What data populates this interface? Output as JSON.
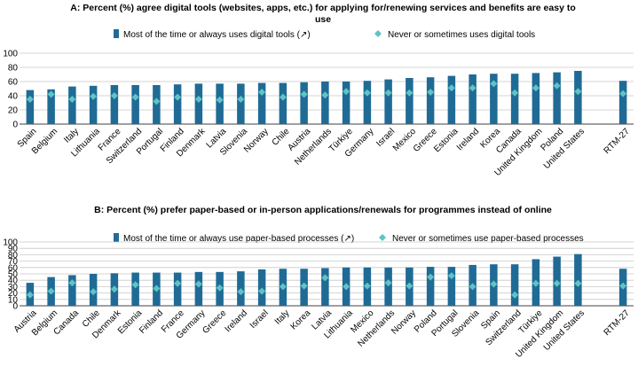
{
  "colors": {
    "bar": "#1f6b96",
    "diamond": "#5ec4c4",
    "grid": "#c8c8c8",
    "axis": "#000000"
  },
  "chart_data": [
    {
      "type": "bar",
      "title_line1": "A: Percent (%) agree digital tools (websites, apps, etc.) for applying for/renewing services and benefits are easy to",
      "title_line2": "use",
      "ylim": [
        0,
        100
      ],
      "yticks": [
        0,
        20,
        40,
        60,
        80,
        100
      ],
      "grid": true,
      "legend_position": "top",
      "categories": [
        "Spain",
        "Belgium",
        "Italy",
        "Lithuania",
        "France",
        "Switzerland",
        "Portugal",
        "Finland",
        "Denmark",
        "Latvia",
        "Slovenia",
        "Norway",
        "Chile",
        "Austria",
        "Netherlands",
        "Türkiye",
        "Germany",
        "Israel",
        "Mexico",
        "Greece",
        "Estonia",
        "Ireland",
        "Korea",
        "Canada",
        "United Kingdom",
        "Poland",
        "United States",
        "RTM-27"
      ],
      "series": [
        {
          "name": "Most of the time or always uses digital tools (↗)",
          "marker": "bar",
          "values": [
            48,
            49,
            53,
            54,
            55,
            55,
            55,
            56,
            57,
            57,
            57,
            58,
            58,
            59,
            60,
            60,
            61,
            63,
            65,
            66,
            68,
            70,
            71,
            71,
            72,
            73,
            75,
            61
          ]
        },
        {
          "name": "Never or sometimes uses digital tools",
          "marker": "diamond",
          "values": [
            35,
            42,
            35,
            39,
            40,
            38,
            32,
            38,
            35,
            34,
            35,
            45,
            38,
            42,
            41,
            46,
            44,
            44,
            44,
            45,
            51,
            51,
            57,
            44,
            51,
            54,
            46,
            43
          ]
        }
      ]
    },
    {
      "type": "bar",
      "title_line1": "B: Percent (%) prefer paper-based or in-person applications/renewals for programmes instead of online",
      "title_line2": "",
      "ylim": [
        0,
        100
      ],
      "yticks": [
        0,
        10,
        20,
        30,
        40,
        50,
        60,
        70,
        80,
        90,
        100
      ],
      "grid": true,
      "legend_position": "top",
      "categories": [
        "Austria",
        "Belgium",
        "Canada",
        "Chile",
        "Denmark",
        "Estonia",
        "Finland",
        "France",
        "Germany",
        "Greece",
        "Ireland",
        "Israel",
        "Italy",
        "Korea",
        "Latvia",
        "Lithuania",
        "Mexico",
        "Netherlands",
        "Norway",
        "Poland",
        "Portugal",
        "Slovenia",
        "Spain",
        "Switzerland",
        "Türkiye",
        "United Kingdom",
        "United States",
        "RTM-27"
      ],
      "series": [
        {
          "name": "Most of the time or always use paper-based processes (↗)",
          "marker": "bar",
          "values": [
            36,
            45,
            48,
            50,
            51,
            52,
            52,
            52,
            53,
            53,
            54,
            57,
            58,
            58,
            59,
            60,
            60,
            60,
            60,
            61,
            61,
            64,
            65,
            65,
            73,
            77,
            81,
            58
          ]
        },
        {
          "name": "Never or sometimes use paper-based processes",
          "marker": "diamond",
          "values": [
            17,
            23,
            36,
            22,
            26,
            33,
            27,
            35,
            34,
            28,
            22,
            23,
            30,
            31,
            44,
            30,
            31,
            36,
            31,
            45,
            47,
            30,
            34,
            17,
            35,
            35,
            35,
            31
          ]
        }
      ]
    }
  ]
}
